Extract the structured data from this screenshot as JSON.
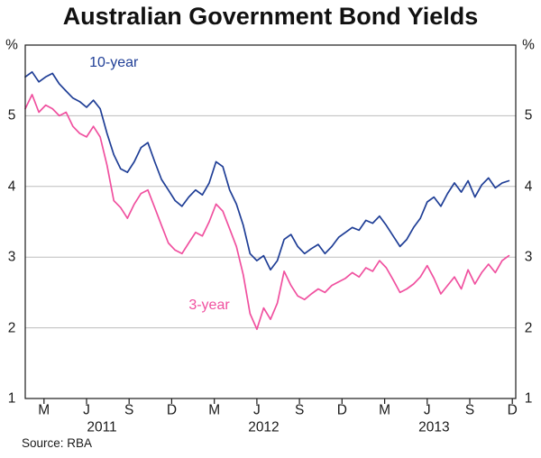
{
  "chart_data": {
    "type": "line",
    "title": "Australian Government Bond Yields",
    "unit": "%",
    "source": "Source: RBA",
    "ylabel": "",
    "xlabel": "",
    "y": {
      "min": 1,
      "max": 6,
      "ticks": [
        5,
        4,
        3,
        2,
        1
      ],
      "gridlines": [
        2,
        3,
        4,
        5
      ]
    },
    "x": {
      "min": 2011.1,
      "max": 2013.98,
      "month_ticks": [
        {
          "x": 2011.21,
          "label": "M"
        },
        {
          "x": 2011.46,
          "label": "J"
        },
        {
          "x": 2011.71,
          "label": "S"
        },
        {
          "x": 2011.96,
          "label": "D"
        },
        {
          "x": 2012.21,
          "label": "M"
        },
        {
          "x": 2012.46,
          "label": "J"
        },
        {
          "x": 2012.71,
          "label": "S"
        },
        {
          "x": 2012.96,
          "label": "D"
        },
        {
          "x": 2013.21,
          "label": "M"
        },
        {
          "x": 2013.46,
          "label": "J"
        },
        {
          "x": 2013.71,
          "label": "S"
        },
        {
          "x": 2013.96,
          "label": "D"
        }
      ],
      "year_labels": [
        {
          "label": "2011",
          "x": 2011.55
        },
        {
          "label": "2012",
          "x": 2012.5
        },
        {
          "label": "2013",
          "x": 2013.5
        }
      ]
    },
    "x_values": [
      2011.1,
      2011.14,
      2011.18,
      2011.22,
      2011.26,
      2011.3,
      2011.34,
      2011.38,
      2011.42,
      2011.46,
      2011.5,
      2011.54,
      2011.58,
      2011.62,
      2011.66,
      2011.7,
      2011.74,
      2011.78,
      2011.82,
      2011.86,
      2011.9,
      2011.94,
      2011.98,
      2012.02,
      2012.06,
      2012.1,
      2012.14,
      2012.18,
      2012.22,
      2012.26,
      2012.3,
      2012.34,
      2012.38,
      2012.42,
      2012.46,
      2012.5,
      2012.54,
      2012.58,
      2012.62,
      2012.66,
      2012.7,
      2012.74,
      2012.78,
      2012.82,
      2012.86,
      2012.9,
      2012.94,
      2012.98,
      2013.02,
      2013.06,
      2013.1,
      2013.14,
      2013.18,
      2013.22,
      2013.26,
      2013.3,
      2013.34,
      2013.38,
      2013.42,
      2013.46,
      2013.5,
      2013.54,
      2013.58,
      2013.62,
      2013.66,
      2013.7,
      2013.74,
      2013.78,
      2013.82,
      2013.86,
      2013.9,
      2013.94
    ],
    "series": [
      {
        "name": "10-year",
        "color": "#1f3e96",
        "label_pos": {
          "x": 2011.62,
          "y": 5.75
        },
        "values": [
          5.55,
          5.62,
          5.48,
          5.55,
          5.6,
          5.45,
          5.35,
          5.25,
          5.2,
          5.12,
          5.22,
          5.1,
          4.75,
          4.45,
          4.25,
          4.2,
          4.35,
          4.55,
          4.62,
          4.35,
          4.1,
          3.95,
          3.8,
          3.72,
          3.85,
          3.95,
          3.88,
          4.05,
          4.35,
          4.28,
          3.95,
          3.75,
          3.45,
          3.05,
          2.95,
          3.02,
          2.82,
          2.95,
          3.25,
          3.32,
          3.15,
          3.05,
          3.12,
          3.18,
          3.05,
          3.15,
          3.28,
          3.35,
          3.42,
          3.38,
          3.52,
          3.48,
          3.58,
          3.45,
          3.3,
          3.15,
          3.25,
          3.42,
          3.55,
          3.78,
          3.85,
          3.72,
          3.9,
          4.05,
          3.92,
          4.08,
          3.85,
          4.02,
          4.12,
          3.98,
          4.05,
          4.08
        ]
      },
      {
        "name": "3-year",
        "color": "#f0509f",
        "label_pos": {
          "x": 2012.18,
          "y": 2.32
        },
        "values": [
          5.1,
          5.3,
          5.05,
          5.15,
          5.1,
          5.0,
          5.05,
          4.85,
          4.75,
          4.7,
          4.85,
          4.7,
          4.3,
          3.8,
          3.7,
          3.55,
          3.75,
          3.9,
          3.95,
          3.7,
          3.45,
          3.2,
          3.1,
          3.05,
          3.2,
          3.35,
          3.3,
          3.5,
          3.75,
          3.65,
          3.4,
          3.15,
          2.75,
          2.2,
          1.98,
          2.28,
          2.12,
          2.35,
          2.8,
          2.6,
          2.45,
          2.4,
          2.48,
          2.55,
          2.5,
          2.6,
          2.65,
          2.7,
          2.78,
          2.72,
          2.85,
          2.8,
          2.95,
          2.85,
          2.68,
          2.5,
          2.55,
          2.62,
          2.72,
          2.88,
          2.7,
          2.48,
          2.6,
          2.72,
          2.55,
          2.82,
          2.62,
          2.78,
          2.9,
          2.78,
          2.95,
          3.02
        ]
      }
    ]
  }
}
